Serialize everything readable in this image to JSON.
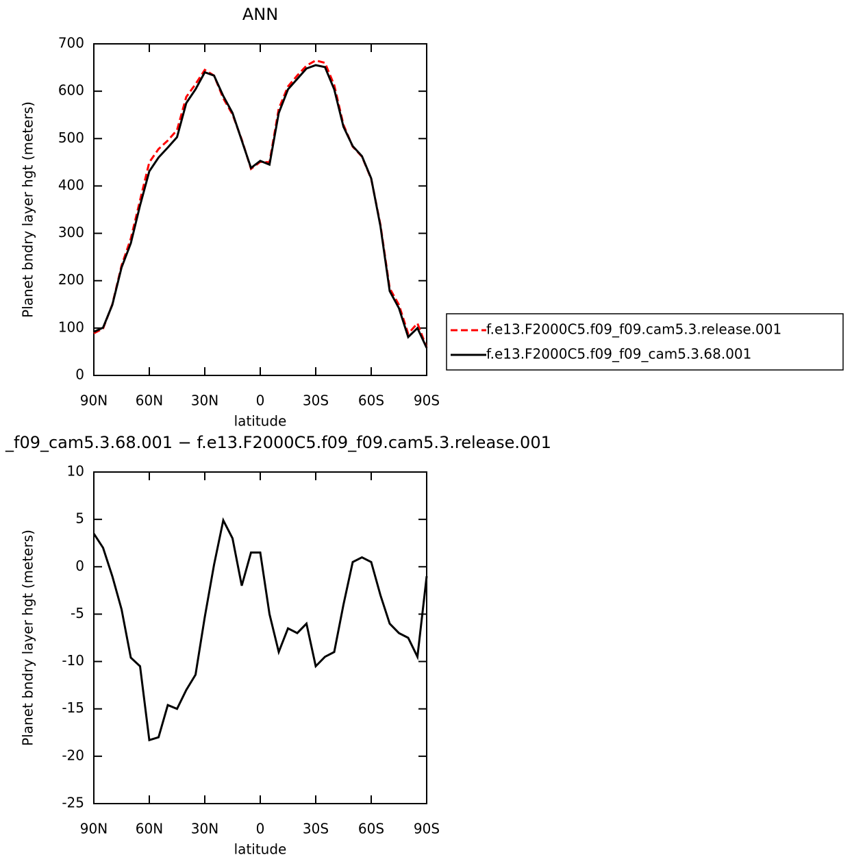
{
  "chart_data": [
    {
      "type": "line",
      "title": "ANN",
      "xlabel": "latitude",
      "ylabel": "Planet bndry layer hgt (meters)",
      "x": [
        90,
        85,
        80,
        75,
        70,
        65,
        60,
        55,
        50,
        45,
        40,
        35,
        30,
        25,
        20,
        15,
        10,
        5,
        0,
        -5,
        -10,
        -15,
        -20,
        -25,
        -30,
        -35,
        -40,
        -45,
        -50,
        -55,
        -60,
        -65,
        -70,
        -75,
        -80,
        -85,
        -90
      ],
      "series": [
        {
          "name": "f.e13.F2000C5.f09_f09.cam5.3.release.001",
          "color": "#ff0000",
          "line_style": "dashed",
          "values": [
            89,
            99,
            150,
            232,
            289,
            370,
            450,
            478,
            496,
            518,
            588,
            615,
            645,
            633,
            585,
            551,
            498,
            436,
            451,
            450,
            563,
            610,
            633,
            654,
            665,
            660,
            613,
            529,
            483,
            462,
            415,
            318,
            184,
            149,
            88,
            110,
            59
          ]
        },
        {
          "name": "f.e13.F2000C5.f09_f09_cam5.3.68.001",
          "color": "#000000",
          "line_style": "solid",
          "values": [
            92,
            101,
            149,
            228,
            279,
            359,
            431,
            460,
            481,
            503,
            575,
            604,
            640,
            633,
            590,
            554,
            496,
            438,
            453,
            445,
            554,
            604,
            626,
            648,
            655,
            651,
            604,
            525,
            484,
            463,
            416,
            315,
            178,
            142,
            81,
            100,
            58
          ]
        }
      ],
      "xlim": [
        90,
        -90
      ],
      "xticks": [
        {
          "value": 90,
          "label": "90N"
        },
        {
          "value": 60,
          "label": "60N"
        },
        {
          "value": 30,
          "label": "30N"
        },
        0,
        {
          "value": -30,
          "label": "30S"
        },
        {
          "value": -60,
          "label": "60S"
        },
        {
          "value": -90,
          "label": "90S"
        }
      ],
      "ylim": [
        0,
        700
      ],
      "yticks": [
        0,
        100,
        200,
        300,
        400,
        500,
        600,
        700
      ],
      "legend": "right"
    },
    {
      "type": "line",
      "title": "_f09_cam5.3.68.001 − f.e13.F2000C5.f09_f09.cam5.3.release.001",
      "xlabel": "latitude",
      "ylabel": "Planet bndry layer hgt (meters)",
      "x": [
        90,
        85,
        80,
        75,
        70,
        65,
        60,
        55,
        50,
        45,
        40,
        35,
        30,
        25,
        20,
        15,
        10,
        5,
        0,
        -5,
        -10,
        -15,
        -20,
        -25,
        -30,
        -35,
        -40,
        -45,
        -50,
        -55,
        -60,
        -65,
        -70,
        -75,
        -80,
        -85,
        -90
      ],
      "series": [
        {
          "color": "#000000",
          "values": [
            3.5,
            2,
            -1,
            -4.5,
            -9.6,
            -10.5,
            -18.3,
            -18,
            -14.6,
            -15,
            -13,
            -11.4,
            -5.3,
            0.2,
            4.9,
            3,
            -2,
            1.5,
            1.5,
            -5,
            -9,
            -6.5,
            -7,
            -6,
            -10.5,
            -9.5,
            -9,
            -4,
            0.5,
            1,
            0.5,
            -3,
            -6,
            -7,
            -7.5,
            -9.5,
            -1
          ]
        }
      ],
      "xlim": [
        90,
        -90
      ],
      "xticks": [
        {
          "value": 90,
          "label": "90N"
        },
        {
          "value": 60,
          "label": "60N"
        },
        {
          "value": 30,
          "label": "30N"
        },
        0,
        {
          "value": -30,
          "label": "30S"
        },
        {
          "value": -60,
          "label": "60S"
        },
        {
          "value": -90,
          "label": "90S"
        }
      ],
      "ylim": [
        -25,
        10
      ],
      "yticks": [
        -25,
        -20,
        -15,
        -10,
        -5,
        0,
        5,
        10
      ]
    }
  ]
}
